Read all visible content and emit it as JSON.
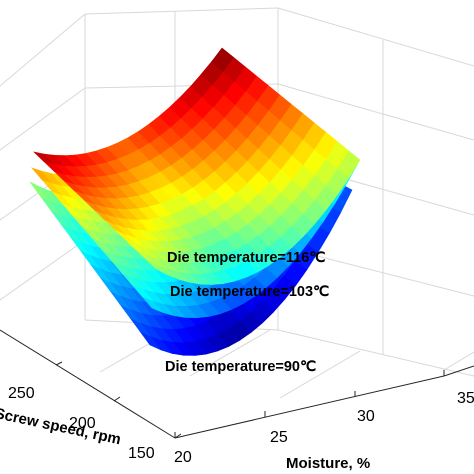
{
  "chart_data": {
    "type": "surface",
    "colormap": "jet",
    "grid": true,
    "xlabel": "Moisture, %",
    "ylabel": "Screw speed, rpm",
    "x_ticks": [
      "20",
      "25",
      "30",
      "35"
    ],
    "y_ticks": [
      "150",
      "200",
      "250"
    ],
    "xlim": [
      20,
      35
    ],
    "ylim": [
      150,
      300
    ],
    "series": [
      {
        "name": "Die temperature=116℃",
        "die_temperature": 116
      },
      {
        "name": "Die temperature=103℃",
        "die_temperature": 103
      },
      {
        "name": "Die temperature=90℃",
        "die_temperature": 90
      }
    ]
  }
}
